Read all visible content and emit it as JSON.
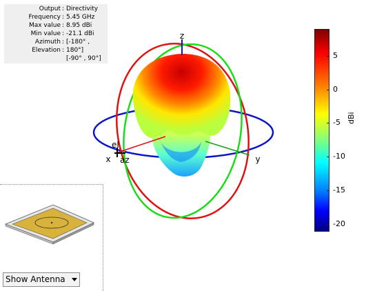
{
  "info": {
    "rows": [
      {
        "label": "Output",
        "value": "Directivity"
      },
      {
        "label": "Frequency",
        "value": "5.45 GHz"
      },
      {
        "label": "Max value",
        "value": "8.95 dBi"
      },
      {
        "label": "Min value",
        "value": "-21.1 dBi"
      },
      {
        "label": "Azimuth",
        "value": "[-180° ,"
      },
      {
        "label": "Elevation",
        "value": "180°]"
      },
      {
        "label": "",
        "value": "[-90° , 90°]"
      }
    ]
  },
  "axes": {
    "x": "x",
    "y": "y",
    "z": "z",
    "el": "el",
    "az": "az"
  },
  "colorbar": {
    "label": "dBi",
    "ticks": [
      "5",
      "0",
      "-5",
      "-10",
      "-15",
      "-20"
    ],
    "min": -21.1,
    "max": 8.95
  },
  "control": {
    "select_label": "Show Antenna"
  },
  "colors": {
    "azimuth_ring": "#0a14c8",
    "elevation_ring_red": "#e01010",
    "elevation_ring_green": "#18dc18",
    "patch": "#d8b23a"
  }
}
